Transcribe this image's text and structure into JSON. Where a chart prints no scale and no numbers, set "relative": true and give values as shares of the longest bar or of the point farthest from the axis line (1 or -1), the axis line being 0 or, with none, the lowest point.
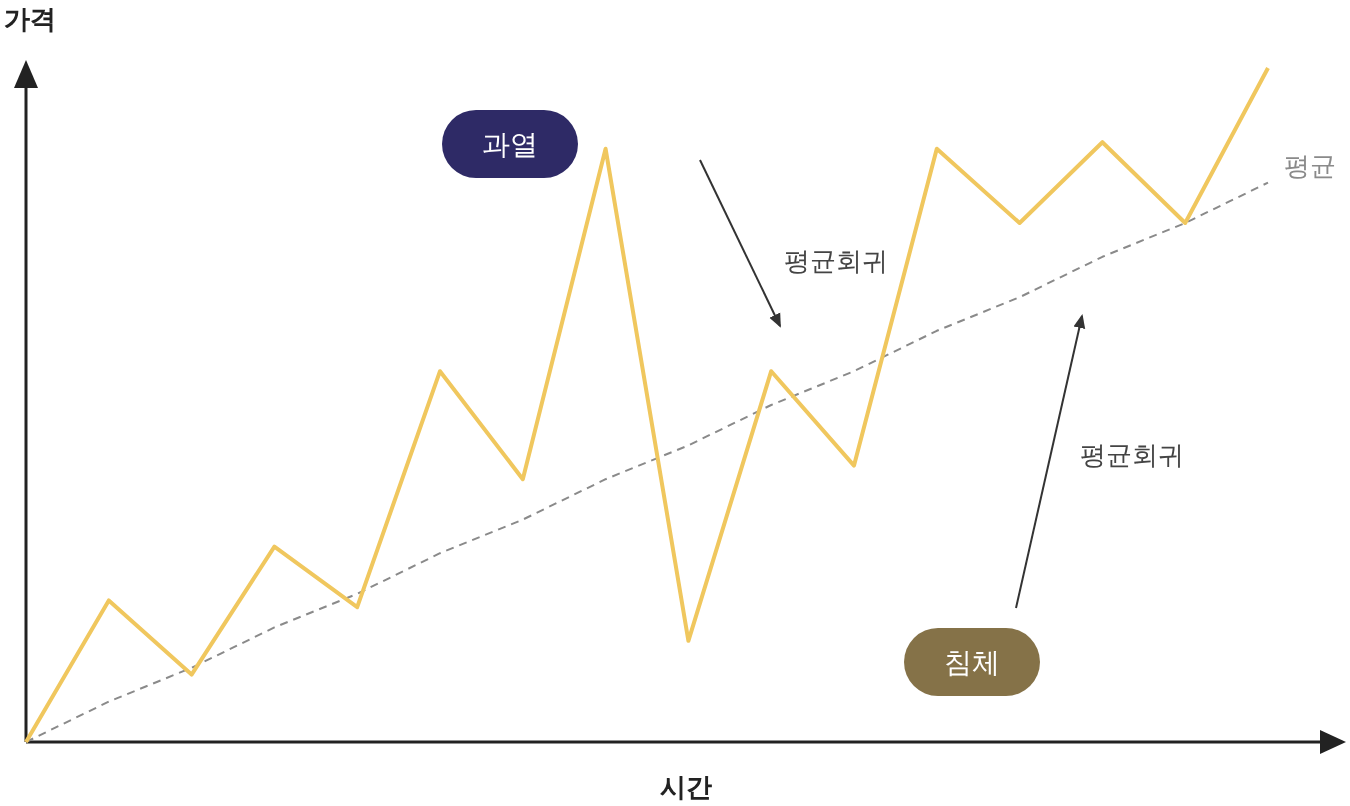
{
  "chart_data": {
    "type": "line",
    "relative": true,
    "xlabel": "시간",
    "ylabel": "가격",
    "categories": [
      null,
      null,
      null,
      null,
      null,
      null,
      null,
      null,
      null,
      null,
      null,
      null,
      null,
      null,
      null,
      null
    ],
    "series": [
      {
        "values": [
          0,
          0.21,
          0.1,
          0.29,
          0.2,
          0.55,
          0.39,
          0.88,
          0.15,
          0.55,
          0.41,
          0.88,
          0.77,
          0.89,
          0.77,
          1
        ],
        "color": "#f0c75e",
        "line_style": "solid"
      },
      {
        "name": "평균",
        "values": [
          0,
          0.06,
          0.11,
          0.17,
          0.22,
          0.28,
          0.33,
          0.39,
          0.44,
          0.5,
          0.55,
          0.61,
          0.66,
          0.72,
          0.77,
          0.83
        ],
        "color": "#8a8a8a",
        "line_style": "dashed"
      }
    ],
    "annotations": [
      "과열",
      "침체",
      "평균회귀",
      "평균회귀"
    ]
  }
}
